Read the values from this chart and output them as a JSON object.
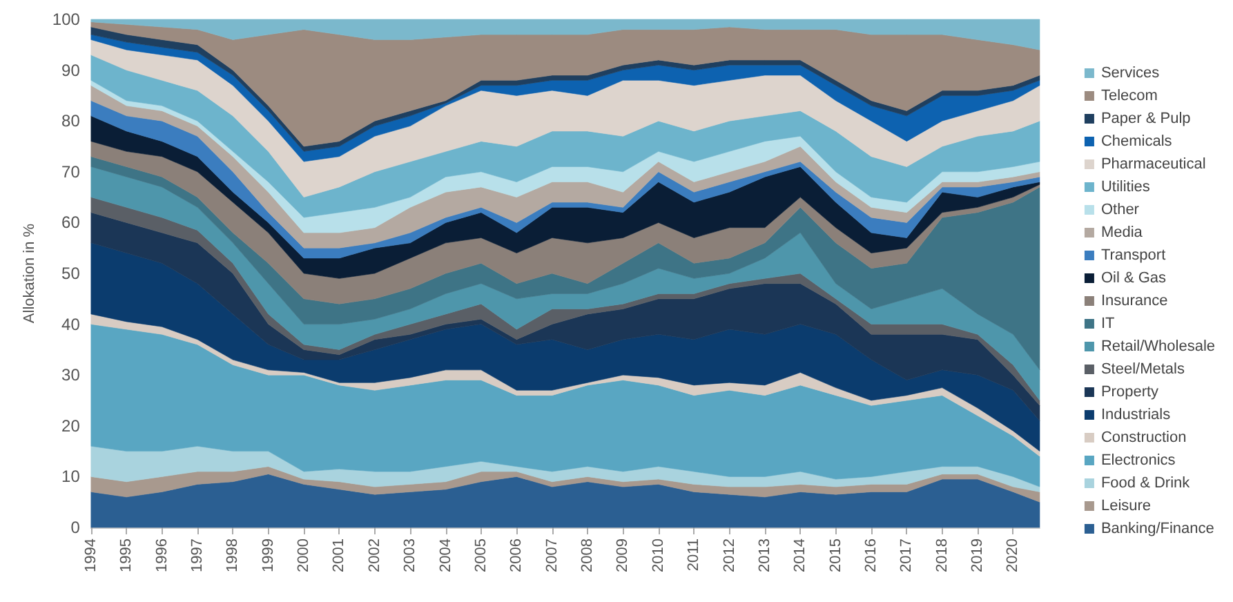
{
  "chart_data": {
    "type": "area",
    "stacked": true,
    "ylabel": "Allokation in %",
    "legend": "right",
    "x": [
      1994,
      1995,
      1996,
      1997,
      1998,
      1999,
      2000,
      2001,
      2002,
      2003,
      2004,
      2005,
      2006,
      2007,
      2008,
      2009,
      2010,
      2011,
      2012,
      2013,
      2014,
      2015,
      2016,
      2017,
      2018,
      2019,
      2020,
      2020.75
    ],
    "xlim": [
      1994,
      2020.75
    ],
    "xticks": [
      1994,
      1995,
      1996,
      1997,
      1998,
      1999,
      2000,
      2001,
      2002,
      2003,
      2004,
      2005,
      2006,
      2007,
      2008,
      2009,
      2010,
      2011,
      2012,
      2013,
      2014,
      2015,
      2016,
      2017,
      2018,
      2019,
      2020
    ],
    "ylim": [
      0,
      100
    ],
    "yticks": [
      0,
      10,
      20,
      30,
      40,
      50,
      60,
      70,
      80,
      90,
      100
    ],
    "series": [
      {
        "name": "Banking/Finance",
        "color": "#2b5f92",
        "values": [
          7,
          6,
          7,
          8.5,
          9,
          10.5,
          8.5,
          7.5,
          6.5,
          7,
          7.5,
          9,
          10,
          8,
          9,
          8,
          8.5,
          7,
          6.5,
          6,
          7,
          6.5,
          7,
          7,
          9.5,
          9.5,
          7,
          5
        ]
      },
      {
        "name": "Leisure",
        "color": "#a8998e",
        "values": [
          3,
          3,
          3,
          2.5,
          2,
          1.5,
          1,
          1.5,
          1.5,
          1.5,
          1.5,
          2,
          1,
          1,
          1,
          1,
          1,
          1.5,
          1.5,
          2,
          1.5,
          1.5,
          1.5,
          1.5,
          1,
          1,
          1,
          2
        ]
      },
      {
        "name": "Food & Drink",
        "color": "#a9d3de",
        "values": [
          6,
          6,
          5,
          5,
          4,
          3,
          1.5,
          2.5,
          3,
          2.5,
          3,
          2,
          1,
          2,
          2,
          2,
          2.5,
          2.5,
          2,
          2,
          2.5,
          1.5,
          1.5,
          2.5,
          1.5,
          1.5,
          2,
          1
        ]
      },
      {
        "name": "Electronics",
        "color": "#59a6c2",
        "values": [
          24,
          24,
          23,
          20,
          17,
          15,
          19,
          16.5,
          16,
          17,
          17,
          16,
          14,
          15,
          16,
          18,
          16,
          15,
          17,
          16,
          17,
          16.5,
          14,
          14,
          14,
          10,
          8,
          6
        ]
      },
      {
        "name": "Construction",
        "color": "#d8ccc3",
        "values": [
          2,
          1.5,
          1.5,
          1,
          1,
          1,
          0.5,
          0.5,
          1.5,
          1.5,
          2,
          2,
          1,
          1,
          0.5,
          1,
          1.5,
          2,
          1.5,
          2,
          2.5,
          1.5,
          1,
          1,
          1.5,
          1.5,
          1,
          1
        ]
      },
      {
        "name": "Industrials",
        "color": "#0b3c6e",
        "values": [
          14,
          13.5,
          12.5,
          11,
          9,
          5,
          2.5,
          4.5,
          6.5,
          7.5,
          8,
          9,
          9,
          10,
          6.5,
          7,
          8.5,
          9,
          10.5,
          10,
          9.5,
          10.5,
          8,
          3,
          3.5,
          6.5,
          8,
          6
        ]
      },
      {
        "name": "Property",
        "color": "#1b3656",
        "values": [
          6,
          6,
          6,
          8,
          8,
          4,
          2,
          1,
          2,
          1,
          1,
          1,
          1,
          3,
          7,
          6,
          7,
          8,
          8,
          10,
          8,
          6,
          5,
          9,
          7,
          7,
          3,
          3
        ]
      },
      {
        "name": "Steel/Metals",
        "color": "#5a5f66",
        "values": [
          3,
          3,
          3,
          2.5,
          2,
          2,
          1,
          1,
          1,
          2,
          2,
          3,
          2,
          3,
          1,
          1,
          1,
          1,
          1,
          1,
          2,
          1,
          2,
          2,
          2,
          1,
          2,
          1
        ]
      },
      {
        "name": "Retail/Wholesale",
        "color": "#4e96ab",
        "values": [
          6,
          6,
          6,
          4.5,
          4,
          6,
          4,
          5,
          3,
          3,
          4,
          4,
          6,
          3,
          3,
          4,
          5,
          3,
          2,
          4,
          8,
          3,
          3,
          5,
          7,
          4,
          6,
          6
        ]
      },
      {
        "name": "IT",
        "color": "#3e7486",
        "values": [
          2,
          2,
          2,
          2,
          2,
          4,
          5,
          4,
          4,
          4,
          4,
          4,
          3,
          4,
          2,
          4,
          5,
          3,
          3,
          3,
          5,
          8,
          8,
          7,
          14,
          20,
          26,
          36
        ]
      },
      {
        "name": "Insurance",
        "color": "#8b8079",
        "values": [
          3,
          3,
          4,
          5,
          6,
          6,
          5,
          5,
          5,
          6,
          6,
          5,
          6,
          7,
          8,
          5,
          4,
          5,
          6,
          3,
          2,
          3,
          3,
          3,
          1,
          1,
          1,
          0.5
        ]
      },
      {
        "name": "Oil & Gas",
        "color": "#0a1e36",
        "values": [
          5,
          4,
          3,
          3,
          2,
          2,
          3,
          4,
          5,
          3,
          4,
          5,
          4,
          6,
          7,
          5,
          8,
          7,
          7,
          10,
          6,
          5,
          4,
          2,
          4,
          2,
          2,
          0.5
        ]
      },
      {
        "name": "Transport",
        "color": "#3b7dbf",
        "values": [
          3,
          3,
          4,
          4,
          4,
          2,
          2,
          2,
          1,
          2,
          1,
          1,
          2,
          1,
          1,
          1,
          2,
          2,
          2,
          1,
          1,
          2,
          3,
          3,
          1,
          2,
          1,
          1
        ]
      },
      {
        "name": "Media",
        "color": "#b4a9a1",
        "values": [
          3,
          2,
          2,
          2,
          3,
          4,
          3,
          3,
          3,
          5,
          5,
          4,
          5,
          4,
          4,
          3,
          2,
          2,
          2,
          2,
          3,
          2,
          2,
          2,
          1,
          1,
          1,
          1
        ]
      },
      {
        "name": "Other",
        "color": "#b8e0ea",
        "values": [
          1,
          1,
          1,
          1,
          1,
          2,
          3,
          4,
          4,
          2,
          3,
          3,
          3,
          3,
          3,
          4,
          2,
          4,
          4,
          4,
          2,
          2,
          2,
          2,
          2,
          2,
          2,
          2
        ]
      },
      {
        "name": "Utilities",
        "color": "#6db4cc",
        "values": [
          5,
          6,
          5,
          6,
          7,
          6,
          4,
          5,
          7,
          7,
          5,
          6,
          7,
          7,
          7,
          7,
          6,
          6,
          6,
          5,
          5,
          8,
          8,
          7,
          5,
          7,
          7,
          8
        ]
      },
      {
        "name": "Pharmaceutical",
        "color": "#ddd4cd",
        "values": [
          3,
          4,
          5,
          6,
          6,
          6,
          7,
          6,
          7,
          7,
          9,
          10,
          10,
          8,
          7,
          11,
          8,
          9,
          8,
          8,
          7,
          6,
          7,
          5,
          5,
          5,
          6,
          7
        ]
      },
      {
        "name": "Chemicals",
        "color": "#0d62b0",
        "values": [
          1,
          1.5,
          1.5,
          1.5,
          2,
          2,
          2,
          2,
          2,
          2,
          0.5,
          1,
          2,
          2,
          3,
          2,
          3,
          3,
          3,
          2,
          2,
          3,
          3,
          5,
          5,
          3,
          2,
          1
        ]
      },
      {
        "name": "Paper & Pulp",
        "color": "#1f3f5f",
        "values": [
          1.5,
          1.5,
          1.5,
          1.5,
          1,
          1,
          1,
          1,
          1,
          1,
          0.5,
          1,
          1,
          1,
          1,
          1,
          1,
          1,
          1,
          1,
          1,
          1,
          1,
          1,
          1,
          1,
          1,
          1
        ]
      },
      {
        "name": "Telecom",
        "color": "#9c8b80",
        "values": [
          1,
          2,
          2.5,
          3,
          6,
          14,
          23,
          21,
          16,
          14,
          12.5,
          9,
          9,
          8,
          8,
          7,
          6,
          7,
          6.5,
          6,
          6,
          10,
          13,
          15,
          11,
          10,
          8,
          5
        ]
      },
      {
        "name": "Services",
        "color": "#7bb8cc",
        "values": [
          0.5,
          1,
          1.5,
          2,
          4,
          3,
          2,
          3,
          4,
          4,
          3.5,
          3,
          3,
          3,
          3,
          2,
          2,
          2,
          1.5,
          2,
          2,
          2,
          3,
          3,
          3,
          4,
          5,
          6
        ]
      }
    ]
  }
}
